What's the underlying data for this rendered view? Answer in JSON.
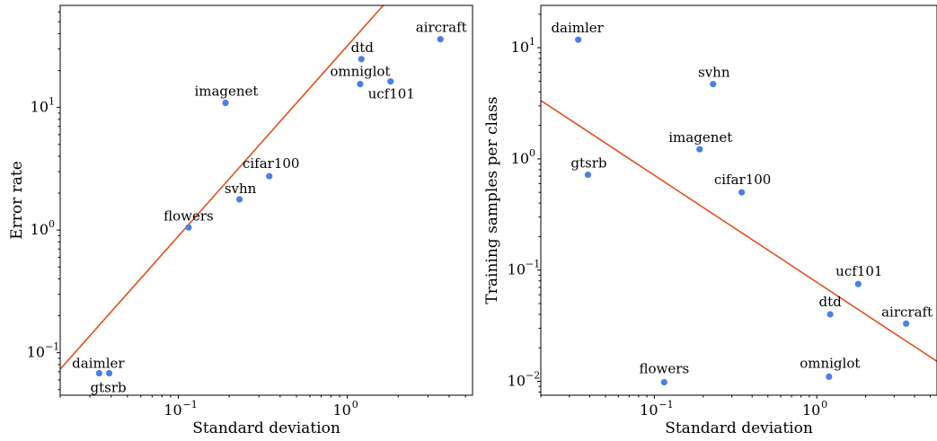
{
  "colors": {
    "point": "#4a7fe8",
    "fit_line": "#e0501c"
  },
  "chart_data": [
    {
      "type": "scatter",
      "title": "",
      "xlabel": "Standard deviation",
      "ylabel": "Error rate",
      "xscale": "log",
      "yscale": "log",
      "xlim": [
        0.02,
        5.5
      ],
      "ylim": [
        0.045,
        68
      ],
      "x_ticks": [
        0.1,
        1
      ],
      "x_tick_labels": [
        "10",
        "10"
      ],
      "x_tick_exps": [
        "−1",
        "0"
      ],
      "y_ticks": [
        0.1,
        1,
        10
      ],
      "y_tick_labels": [
        "10",
        "10",
        "10"
      ],
      "y_tick_exps": [
        "−1",
        "0",
        "1"
      ],
      "grid": false,
      "points": [
        {
          "label": "daimler",
          "x": 0.034,
          "y": 0.068
        },
        {
          "label": "gtsrb",
          "x": 0.039,
          "y": 0.068
        },
        {
          "label": "flowers",
          "x": 0.115,
          "y": 1.05
        },
        {
          "label": "svhn",
          "x": 0.23,
          "y": 1.78
        },
        {
          "label": "cifar100",
          "x": 0.345,
          "y": 2.75
        },
        {
          "label": "imagenet",
          "x": 0.19,
          "y": 10.9
        },
        {
          "label": "omniglot",
          "x": 1.19,
          "y": 15.5
        },
        {
          "label": "dtd",
          "x": 1.21,
          "y": 24.8
        },
        {
          "label": "ucf101",
          "x": 1.8,
          "y": 16.3
        },
        {
          "label": "aircraft",
          "x": 3.55,
          "y": 36.0
        }
      ],
      "fit_line": {
        "x": [
          0.02,
          1.63
        ],
        "y": [
          0.0733,
          68
        ]
      }
    },
    {
      "type": "scatter",
      "title": "",
      "xlabel": "Standard deviation",
      "ylabel": "Training samples per class",
      "xscale": "log",
      "yscale": "log",
      "xlim": [
        0.02,
        5.5
      ],
      "ylim": [
        0.0075,
        24
      ],
      "x_ticks": [
        0.1,
        1
      ],
      "x_tick_labels": [
        "10",
        "10"
      ],
      "x_tick_exps": [
        "−1",
        "0"
      ],
      "y_ticks": [
        0.01,
        0.1,
        1,
        10
      ],
      "y_tick_labels": [
        "10",
        "10",
        "10",
        "10"
      ],
      "y_tick_exps": [
        "−2",
        "−1",
        "0",
        "1"
      ],
      "grid": false,
      "points": [
        {
          "label": "daimler",
          "x": 0.034,
          "y": 11.8
        },
        {
          "label": "svhn",
          "x": 0.23,
          "y": 4.7
        },
        {
          "label": "imagenet",
          "x": 0.19,
          "y": 1.22
        },
        {
          "label": "gtsrb",
          "x": 0.039,
          "y": 0.72
        },
        {
          "label": "cifar100",
          "x": 0.345,
          "y": 0.5
        },
        {
          "label": "ucf101",
          "x": 1.8,
          "y": 0.075
        },
        {
          "label": "dtd",
          "x": 1.21,
          "y": 0.04
        },
        {
          "label": "aircraft",
          "x": 3.55,
          "y": 0.033
        },
        {
          "label": "flowers",
          "x": 0.115,
          "y": 0.0098
        },
        {
          "label": "omniglot",
          "x": 1.19,
          "y": 0.011
        }
      ],
      "fit_line": {
        "x": [
          0.02,
          5.5
        ],
        "y": [
          3.35,
          0.0151
        ]
      }
    }
  ]
}
